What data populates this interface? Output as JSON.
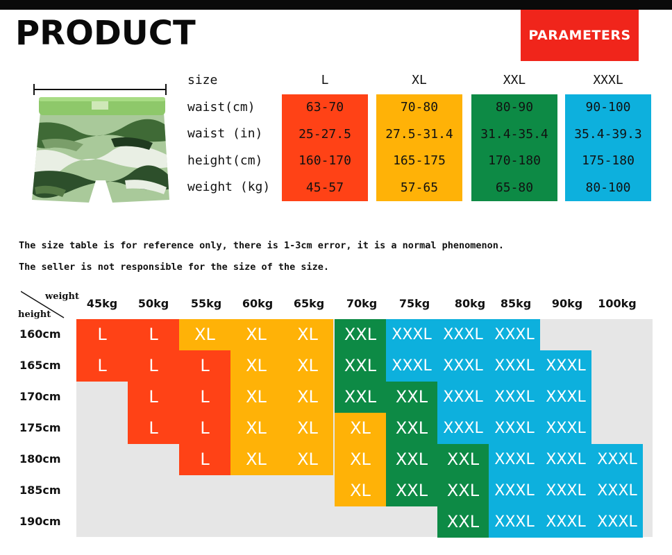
{
  "header": {
    "title": "PRODUCT",
    "badge": "PARAMETERS"
  },
  "colors": {
    "L": "#ff4216",
    "XL": "#ffb207",
    "XXL": "#0d8a45",
    "XXXL": "#0db0dd",
    "badge": "#f0251b",
    "chart_bg": "#e6e6e6"
  },
  "params": {
    "row_labels": [
      "size",
      "waist(cm)",
      "waist (in)",
      "height(cm)",
      "weight (kg)"
    ],
    "columns": [
      {
        "size": "L",
        "color_key": "L",
        "values": [
          "63-70",
          "25-27.5",
          "160-170",
          "45-57"
        ]
      },
      {
        "size": "XL",
        "color_key": "XL",
        "values": [
          "70-80",
          "27.5-31.4",
          "165-175",
          "57-65"
        ]
      },
      {
        "size": "XXL",
        "color_key": "XXL",
        "values": [
          "80-90",
          "31.4-35.4",
          "170-180",
          "65-80"
        ]
      },
      {
        "size": "XXXL",
        "color_key": "XXXL",
        "values": [
          "90-100",
          "35.4-39.3",
          "175-180",
          "80-100"
        ]
      }
    ]
  },
  "notes": [
    "The size table is for reference only, there is 1-3cm error, it is a normal phenomenon.",
    "The seller is not responsible for the size of the size."
  ],
  "chart": {
    "weight_corner": "weight",
    "height_corner": "height",
    "weights": [
      "45kg",
      "50kg",
      "55kg",
      "60kg",
      "65kg",
      "70kg",
      "75kg",
      "80kg",
      "85kg",
      "90kg",
      "100kg"
    ],
    "heights": [
      "160cm",
      "165cm",
      "170cm",
      "175cm",
      "180cm",
      "185cm",
      "190cm"
    ],
    "grid": [
      [
        "L",
        "L",
        "XL",
        "XL",
        "XL",
        "XXL",
        "XXXL",
        "XXXL",
        "XXXL",
        "",
        ""
      ],
      [
        "L",
        "L",
        "L",
        "XL",
        "XL",
        "XXL",
        "XXXL",
        "XXXL",
        "XXXL",
        "XXXL",
        ""
      ],
      [
        "",
        "L",
        "L",
        "XL",
        "XL",
        "XXL",
        "XXL",
        "XXXL",
        "XXXL",
        "XXXL",
        ""
      ],
      [
        "",
        "L",
        "L",
        "XL",
        "XL",
        "XL",
        "XXL",
        "XXXL",
        "XXXL",
        "XXXL",
        ""
      ],
      [
        "",
        "",
        "L",
        "XL",
        "XL",
        "XL",
        "XXL",
        "XXL",
        "XXXL",
        "XXXL",
        "XXXL"
      ],
      [
        "",
        "",
        "",
        "",
        "",
        "XL",
        "XXL",
        "XXL",
        "XXXL",
        "XXXL",
        "XXXL"
      ],
      [
        "",
        "",
        "",
        "",
        "",
        "",
        "",
        "XXL",
        "XXXL",
        "XXXL",
        "XXXL"
      ]
    ]
  }
}
